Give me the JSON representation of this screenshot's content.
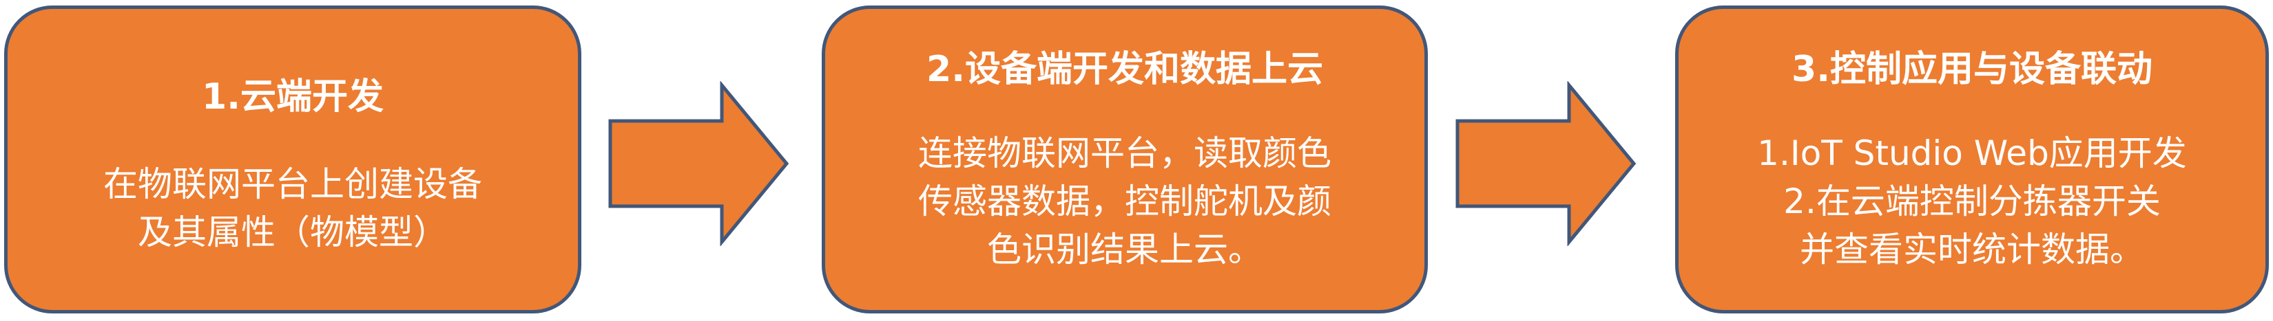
{
  "colors": {
    "box_fill": "#ed7d31",
    "box_border": "#41577a",
    "text": "#ffffff"
  },
  "steps": [
    {
      "title": "1.云端开发",
      "lines": [
        "在物联网平台上创建设备",
        "及其属性（物模型）"
      ]
    },
    {
      "title": "2.设备端开发和数据上云",
      "lines": [
        "连接物联网平台，读取颜色",
        "传感器数据，控制舵机及颜",
        "色识别结果上云。"
      ]
    },
    {
      "title": "3.控制应用与设备联动",
      "lines": [
        "1.IoT Studio Web应用开发",
        "2.在云端控制分拣器开关",
        "并查看实时统计数据。"
      ]
    }
  ],
  "connectors": [
    "arrow-right-icon",
    "arrow-right-icon"
  ]
}
